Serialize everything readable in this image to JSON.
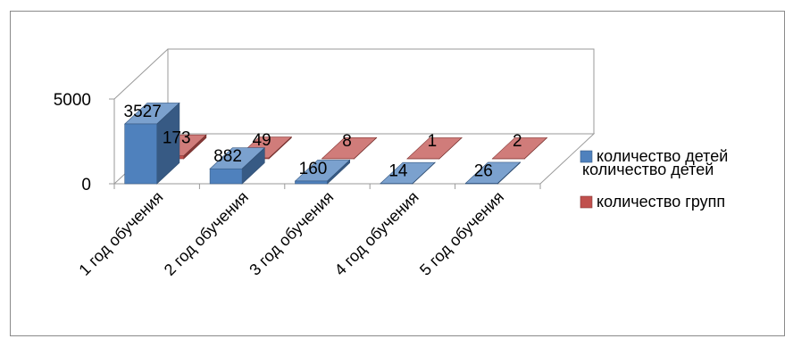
{
  "chart_data": {
    "type": "bar",
    "style": "3d-clustered-column",
    "categories": [
      "1 год обучения",
      "2 год обучения",
      "3 год обучения",
      "4 год обучения",
      "5 год обучения"
    ],
    "series": [
      {
        "name": "количество детей",
        "values": [
          3527,
          882,
          160,
          14,
          26
        ],
        "color": "#4f81bd"
      },
      {
        "name": "количество групп",
        "values": [
          173,
          49,
          8,
          1,
          2
        ],
        "color": "#c0504d"
      }
    ],
    "y_ticks": [
      "0",
      "5000"
    ],
    "ylim": [
      0,
      5000
    ],
    "legend_position": "right",
    "legend_ghost_label": "количество детей",
    "title": "",
    "xlabel": "",
    "ylabel": "",
    "grid": false
  }
}
